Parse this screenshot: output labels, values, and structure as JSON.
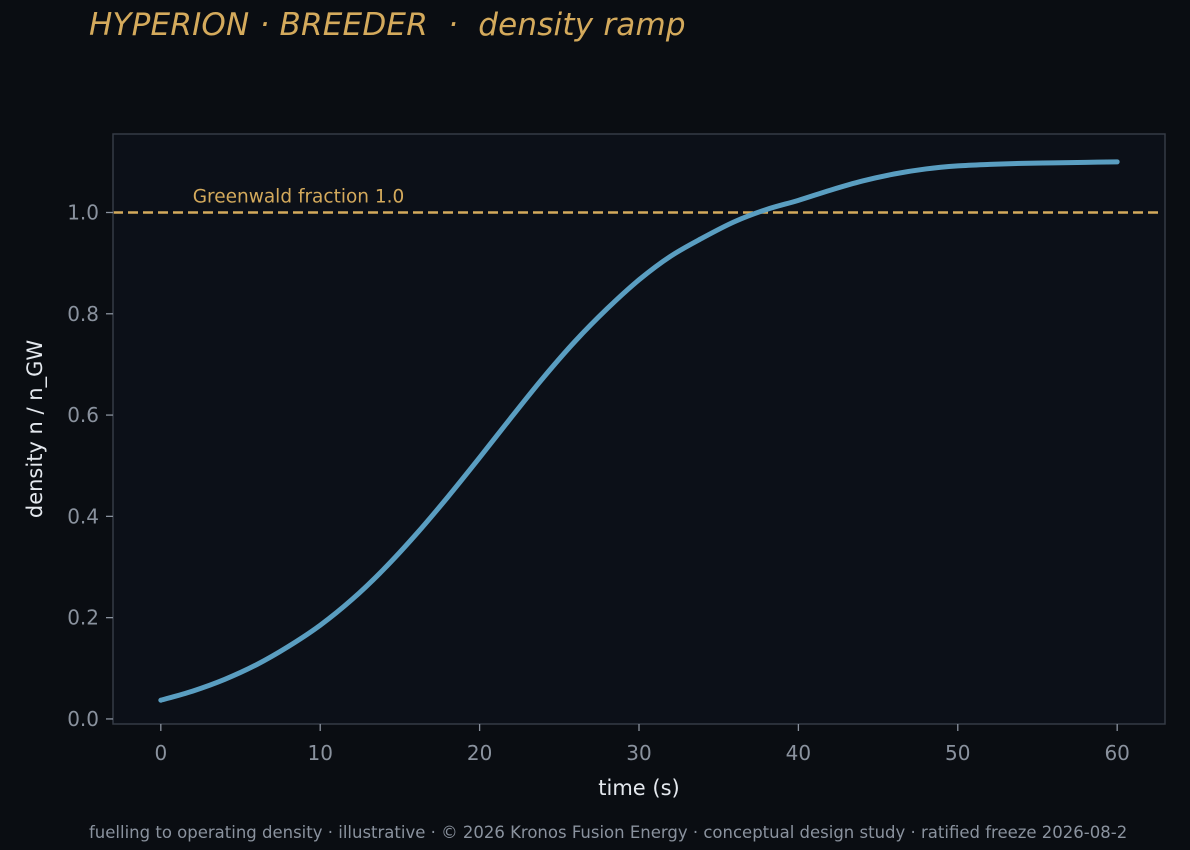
{
  "title": "HYPERION · BREEDER  ·  density ramp",
  "footer": "fuelling to operating density · illustrative · © 2026 Kronos Fusion Energy · conceptual design study · ratified freeze 2026-08-2",
  "colors": {
    "background": "#0a0d12",
    "plot_background": "#0c1018",
    "series": "#5a9ec1",
    "reference": "#d4aa5c",
    "title": "#d4aa5c",
    "axis_text": "#8a929e",
    "frame": "#353b45"
  },
  "chart_data": {
    "type": "line",
    "xlabel": "time (s)",
    "ylabel": "density n / n_GW",
    "xlim": [
      -3,
      63
    ],
    "ylim": [
      -0.01,
      1.155
    ],
    "xticks": [
      0,
      10,
      20,
      30,
      40,
      50,
      60
    ],
    "xtick_labels": [
      "0",
      "10",
      "20",
      "30",
      "40",
      "50",
      "60"
    ],
    "yticks": [
      0.0,
      0.2,
      0.4,
      0.6,
      0.8,
      1.0
    ],
    "ytick_labels": [
      "0.0",
      "0.2",
      "0.4",
      "0.6",
      "0.8",
      "1.0"
    ],
    "grid": false,
    "series": [
      {
        "x": [
          0,
          2,
          4,
          6,
          8,
          10,
          12,
          14,
          16,
          18,
          20,
          22,
          24,
          26,
          28,
          30,
          32,
          34,
          36,
          38,
          40,
          42,
          44,
          46,
          48,
          50,
          52,
          54,
          56,
          58,
          60
        ],
        "values": [
          0.037,
          0.055,
          0.078,
          0.107,
          0.143,
          0.185,
          0.236,
          0.296,
          0.364,
          0.438,
          0.516,
          0.596,
          0.674,
          0.746,
          0.81,
          0.867,
          0.914,
          0.95,
          0.982,
          1.006,
          1.024,
          1.044,
          1.062,
          1.076,
          1.086,
          1.092,
          1.095,
          1.097,
          1.098,
          1.099,
          1.1
        ]
      }
    ],
    "reference_lines": [
      {
        "y": 1.0,
        "label": "Greenwald fraction 1.0",
        "style": "dashed"
      }
    ]
  }
}
